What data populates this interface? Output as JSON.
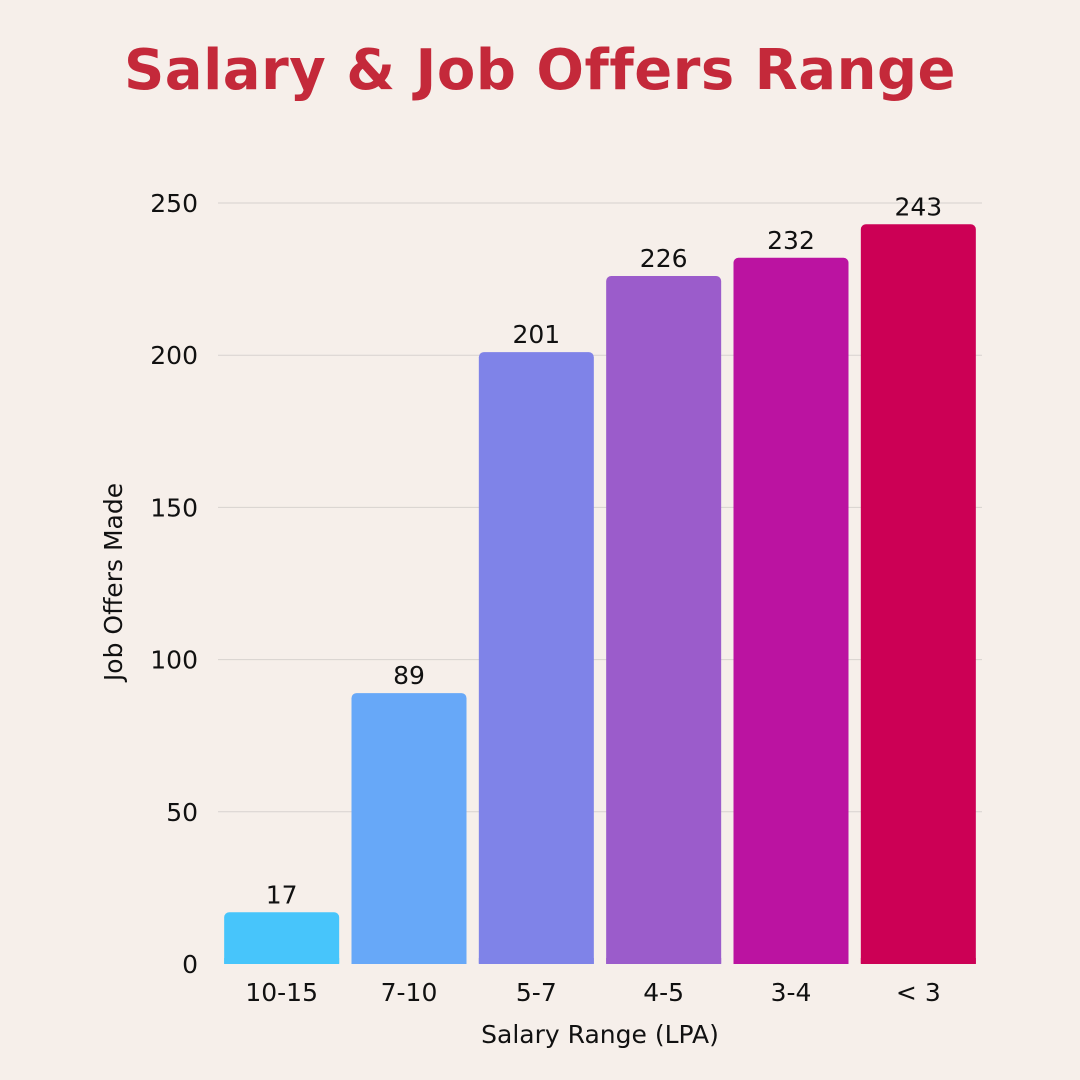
{
  "title": "Salary & Job Offers Range",
  "colors": {
    "background": "#f6efea",
    "title": "#c4293a",
    "grid": "#d7d2cf",
    "bars": [
      "#47c5fb",
      "#67a8f8",
      "#7f83e8",
      "#9b5ccb",
      "#bb13a1",
      "#cc0055"
    ]
  },
  "chart_data": {
    "type": "bar",
    "title": "Salary & Job Offers Range",
    "xlabel": "Salary Range (LPA)",
    "ylabel": "Job Offers Made",
    "categories": [
      "10-15",
      "7-10",
      "5-7",
      "4-5",
      "3-4",
      "< 3"
    ],
    "values": [
      17,
      89,
      201,
      226,
      232,
      243
    ],
    "ylim": [
      0,
      250
    ],
    "yticks": [
      0,
      50,
      100,
      150,
      200,
      250
    ],
    "data_labels": true,
    "grid": true,
    "legend": "none"
  }
}
